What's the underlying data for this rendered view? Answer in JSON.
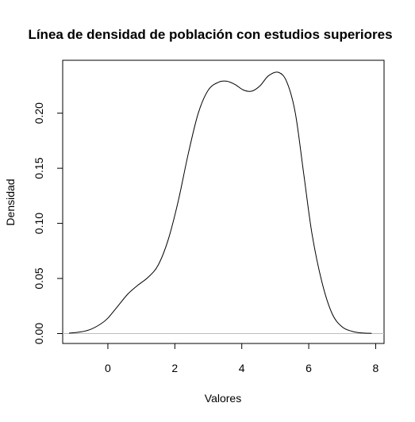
{
  "chart_data": {
    "type": "line",
    "title": "Línea de densidad de población con estudios superiores",
    "xlabel": "Valores",
    "ylabel": "Densidad",
    "xlim": [
      -1.35,
      8.25
    ],
    "ylim": [
      -0.009,
      0.248
    ],
    "x_ticks": [
      0,
      2,
      4,
      6,
      8
    ],
    "x_tick_labels": [
      "0",
      "2",
      "4",
      "6",
      "8"
    ],
    "y_ticks": [
      0,
      0.05,
      0.1,
      0.15,
      0.2
    ],
    "y_tick_labels": [
      "0.00",
      "0.05",
      "0.10",
      "0.15",
      "0.20"
    ],
    "baseline": 0,
    "baseline_color": "#bebebe",
    "line_color": "#000000",
    "grid": false,
    "series": [
      {
        "x": [
          -1.16,
          -0.8,
          -0.5,
          -0.2,
          0.0,
          0.3,
          0.6,
          0.9,
          1.2,
          1.5,
          1.8,
          2.1,
          2.4,
          2.7,
          3.0,
          3.3,
          3.55,
          3.8,
          4.05,
          4.3,
          4.55,
          4.8,
          5.1,
          5.35,
          5.6,
          5.85,
          6.1,
          6.4,
          6.7,
          7.0,
          7.3,
          7.6,
          7.88
        ],
        "y": [
          0.0004,
          0.0015,
          0.004,
          0.009,
          0.014,
          0.025,
          0.036,
          0.044,
          0.051,
          0.062,
          0.085,
          0.12,
          0.163,
          0.2,
          0.221,
          0.228,
          0.229,
          0.226,
          0.221,
          0.22,
          0.225,
          0.234,
          0.237,
          0.228,
          0.2,
          0.145,
          0.09,
          0.046,
          0.018,
          0.006,
          0.002,
          0.0005,
          0.0002
        ]
      }
    ]
  }
}
